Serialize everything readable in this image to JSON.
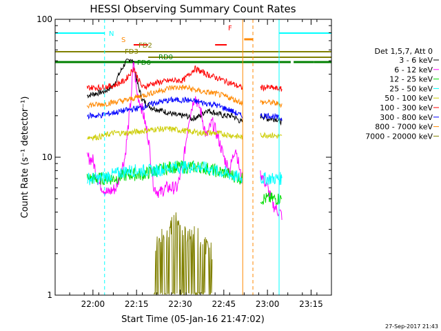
{
  "chart_data": {
    "type": "line",
    "title": "HESSI Observing Summary Count Rates",
    "xlabel": "Start Time (05-Jan-16 21:47:02)",
    "ylabel": "Count Rate (s⁻¹ detector⁻¹)",
    "x_unit": "minutes after 21:47:02",
    "xlim": [
      0,
      95
    ],
    "ylim": [
      1,
      100
    ],
    "yscale": "log",
    "grid": false,
    "legend_position": "right",
    "x_ticks": [
      {
        "x": 13,
        "label": "22:00"
      },
      {
        "x": 28,
        "label": "22:15"
      },
      {
        "x": 43,
        "label": "22:30"
      },
      {
        "x": 58,
        "label": "22:45"
      },
      {
        "x": 73,
        "label": "23:00"
      },
      {
        "x": 88,
        "label": "23:15"
      }
    ],
    "y_ticks": [
      {
        "y": 1,
        "label": "1"
      },
      {
        "y": 10,
        "label": "10"
      },
      {
        "y": 100,
        "label": "100"
      }
    ],
    "legend_title": "Det 1,5,7, Att 0",
    "gaps": [
      [
        64.5,
        70.5
      ]
    ],
    "series": [
      {
        "name": "3 - 6 keV",
        "color": "#000000",
        "x": [
          11,
          14,
          17,
          20,
          22,
          24,
          26,
          27,
          28,
          30,
          33,
          36,
          39,
          42,
          45,
          47,
          50,
          52,
          55,
          58,
          61,
          64,
          71,
          73,
          76,
          78
        ],
        "y": [
          28,
          29,
          30,
          33,
          40,
          48,
          52,
          48,
          36,
          26,
          23,
          22,
          21,
          20,
          20,
          19,
          20,
          22,
          21,
          20,
          20,
          18,
          20,
          19,
          19,
          18
        ]
      },
      {
        "name": "6 - 12 keV",
        "color": "#ff00ff",
        "x": [
          11,
          13,
          15,
          18,
          21,
          24,
          26,
          27,
          28,
          30,
          32,
          34,
          36,
          38,
          40,
          42,
          44,
          46,
          48,
          50,
          52,
          54,
          56,
          58,
          60,
          62,
          64,
          71,
          73,
          75,
          77,
          78
        ],
        "y": [
          10,
          9.5,
          6.5,
          5.5,
          6,
          10,
          25,
          50,
          30,
          22,
          14,
          6,
          5.5,
          6,
          6,
          6,
          9,
          19,
          28,
          22,
          14,
          18,
          14,
          10,
          8,
          12,
          7,
          7.5,
          6,
          4.5,
          4,
          3.8
        ]
      },
      {
        "name": "12 - 25 keV",
        "color": "#00dd00",
        "x": [
          11,
          15,
          20,
          25,
          30,
          35,
          40,
          45,
          50,
          55,
          60,
          64,
          71,
          74,
          78
        ],
        "y": [
          7,
          7,
          7,
          7.5,
          7.5,
          8,
          8.5,
          8.5,
          8.5,
          8,
          7.5,
          7,
          5,
          5,
          5
        ]
      },
      {
        "name": "25 - 50 keV",
        "color": "#00ffff",
        "x": [
          11,
          15,
          20,
          25,
          30,
          35,
          40,
          45,
          50,
          55,
          60,
          64,
          71,
          74,
          78
        ],
        "y": [
          7,
          7,
          7.5,
          8,
          8,
          8,
          8.5,
          8.5,
          8.5,
          8,
          7.5,
          7,
          7,
          7,
          7
        ]
      },
      {
        "name": "50 - 100 keV",
        "color": "#cccc00",
        "x": [
          11,
          15,
          20,
          25,
          30,
          35,
          40,
          45,
          50,
          55,
          60,
          64,
          71,
          74,
          78
        ],
        "y": [
          14,
          14,
          15,
          15,
          15.5,
          16,
          16,
          15.5,
          15,
          15,
          14.5,
          14,
          14.5,
          14.5,
          14
        ]
      },
      {
        "name": "100 - 300 keV",
        "color": "#ff0000",
        "x": [
          11,
          15,
          20,
          24,
          27,
          30,
          33,
          36,
          40,
          44,
          48,
          52,
          55,
          58,
          61,
          64,
          71,
          74,
          78
        ],
        "y": [
          32,
          32,
          33,
          36,
          44,
          32,
          34,
          35,
          36,
          36,
          44,
          40,
          38,
          36,
          34,
          32,
          32,
          32,
          31
        ]
      },
      {
        "name": "300 - 800 keV",
        "color": "#0000ff",
        "x": [
          11,
          15,
          20,
          25,
          30,
          35,
          40,
          45,
          50,
          55,
          60,
          64,
          71,
          74,
          78
        ],
        "y": [
          20,
          20,
          21,
          22,
          23,
          25,
          26,
          26,
          25,
          24,
          22,
          20,
          20,
          20,
          19
        ]
      },
      {
        "name": "800 - 7000 keV",
        "color": "#ff8800",
        "x": [
          11,
          15,
          20,
          25,
          30,
          35,
          40,
          45,
          50,
          55,
          60,
          64,
          71,
          74,
          78
        ],
        "y": [
          24,
          24,
          25,
          26,
          28,
          30,
          32,
          32,
          30,
          29,
          27,
          25,
          25,
          25,
          24
        ]
      },
      {
        "name": "7000 - 20000 keV",
        "color": "#808000",
        "x": [
          34,
          36,
          38,
          40,
          42,
          44,
          46,
          48,
          50,
          52,
          54
        ],
        "y": [
          1.9,
          2.1,
          2.3,
          2.7,
          2.9,
          2.6,
          2.3,
          2.4,
          2.1,
          1.9,
          1.8
        ]
      }
    ],
    "flag_bars": [
      {
        "label": "N",
        "color": "#00ffff",
        "segments": [
          [
            0,
            17
          ],
          [
            77,
            95
          ]
        ]
      },
      {
        "label": "S",
        "color": "#ff8800",
        "segments": [
          [
            65,
            68
          ]
        ]
      },
      {
        "label": "F",
        "color": "#ff0000",
        "segments": [
          [
            27,
            32
          ],
          [
            55,
            59
          ]
        ]
      },
      {
        "label": "FD2",
        "color": "#808000",
        "segments": [
          [
            0,
            95
          ]
        ]
      },
      {
        "label": "FD3",
        "color": "#808000",
        "segments": [
          [
            32,
            95
          ]
        ]
      },
      {
        "label": "RD0",
        "color": "#008000",
        "segments": [
          [
            0,
            81
          ],
          [
            82,
            89
          ],
          [
            89,
            95
          ]
        ]
      },
      {
        "label": "FD6",
        "color": "#008000",
        "segments": [
          [
            36,
            48
          ]
        ]
      }
    ],
    "vertical_lines": [
      {
        "x": 0,
        "color": "#00ffff",
        "style": "solid"
      },
      {
        "x": 17,
        "color": "#00ffff",
        "style": "dashed"
      },
      {
        "x": 64.5,
        "color": "#ff8800",
        "style": "solid"
      },
      {
        "x": 68,
        "color": "#ff8800",
        "style": "dashed"
      },
      {
        "x": 77,
        "color": "#00ffff",
        "style": "solid"
      },
      {
        "x": 95,
        "color": "#00ffff",
        "style": "dashed"
      }
    ],
    "footer_timestamp": "27-Sep-2017 21:43"
  }
}
